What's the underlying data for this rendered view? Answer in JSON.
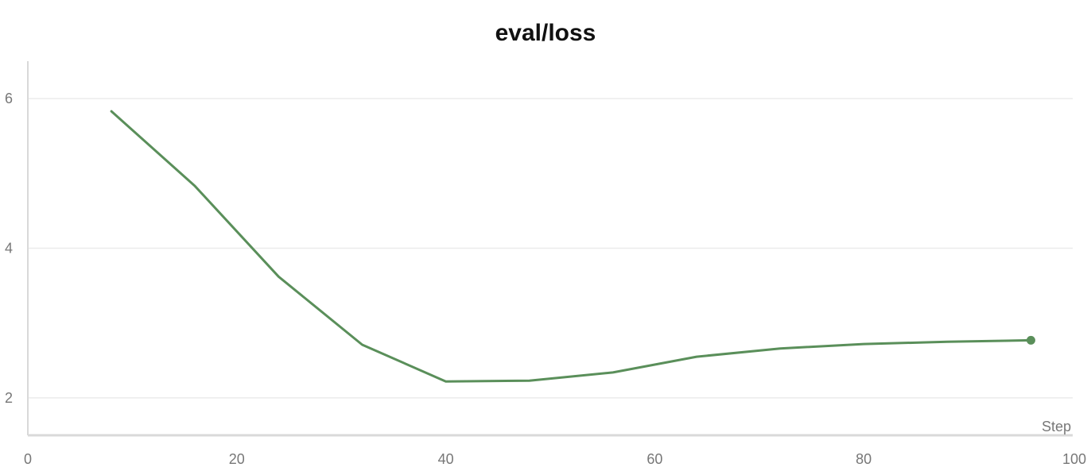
{
  "chart_data": {
    "type": "line",
    "title": "eval/loss",
    "xlabel": "Step",
    "ylabel": "",
    "xlim": [
      0,
      100
    ],
    "ylim": [
      1.5,
      6.5
    ],
    "x_ticks": [
      0,
      20,
      40,
      60,
      80,
      100
    ],
    "y_ticks": [
      2,
      4,
      6
    ],
    "grid": true,
    "series": [
      {
        "color": "#5a8f5a",
        "x": [
          8,
          16,
          24,
          32,
          40,
          48,
          56,
          64,
          72,
          80,
          88,
          96
        ],
        "y": [
          5.83,
          4.83,
          3.62,
          2.71,
          2.22,
          2.23,
          2.34,
          2.55,
          2.66,
          2.72,
          2.75,
          2.77
        ]
      }
    ]
  }
}
